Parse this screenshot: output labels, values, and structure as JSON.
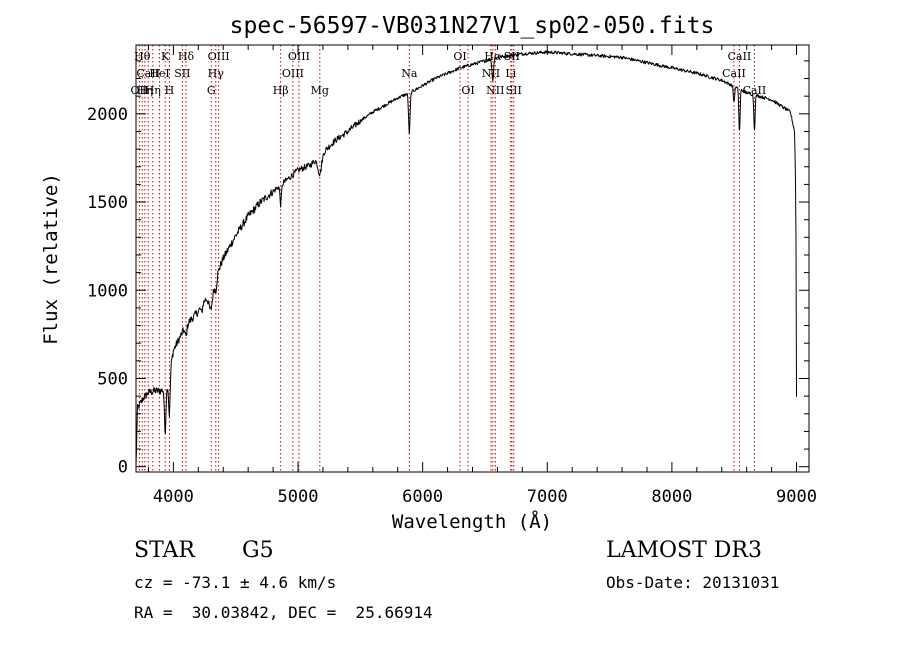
{
  "chart_data": {
    "type": "line",
    "title": "spec-56597-VB031N27V1_sp02-050.fits",
    "xlabel": "Wavelength (Å)",
    "ylabel": "Flux (relative)",
    "xlim": [
      3700,
      9100
    ],
    "ylim": [
      -30,
      2390
    ],
    "xticks": [
      4000,
      5000,
      6000,
      7000,
      8000,
      9000
    ],
    "yticks": [
      0,
      500,
      1000,
      1500,
      2000
    ],
    "xtick_labels": [
      "4000",
      "5000",
      "6000",
      "7000",
      "8000",
      "9000"
    ],
    "ytick_labels": [
      "0",
      "500",
      "1000",
      "1500",
      "2000"
    ],
    "series": [
      {
        "name": "spectrum",
        "continuum": [
          [
            3700,
            0
          ],
          [
            3712,
            330
          ],
          [
            3760,
            390
          ],
          [
            3800,
            420
          ],
          [
            3850,
            430
          ],
          [
            3900,
            430
          ],
          [
            3950,
            450
          ],
          [
            4000,
            660
          ],
          [
            4100,
            800
          ],
          [
            4200,
            880
          ],
          [
            4300,
            1000
          ],
          [
            4400,
            1180
          ],
          [
            4500,
            1310
          ],
          [
            4600,
            1420
          ],
          [
            4700,
            1500
          ],
          [
            4800,
            1560
          ],
          [
            4900,
            1620
          ],
          [
            5000,
            1680
          ],
          [
            5100,
            1710
          ],
          [
            5200,
            1780
          ],
          [
            5300,
            1850
          ],
          [
            5400,
            1900
          ],
          [
            5500,
            1960
          ],
          [
            5600,
            2010
          ],
          [
            5700,
            2050
          ],
          [
            5800,
            2090
          ],
          [
            5900,
            2120
          ],
          [
            6000,
            2160
          ],
          [
            6100,
            2200
          ],
          [
            6200,
            2230
          ],
          [
            6300,
            2260
          ],
          [
            6400,
            2280
          ],
          [
            6500,
            2300
          ],
          [
            6600,
            2320
          ],
          [
            6800,
            2340
          ],
          [
            7000,
            2350
          ],
          [
            7200,
            2340
          ],
          [
            7400,
            2330
          ],
          [
            7600,
            2320
          ],
          [
            7800,
            2290
          ],
          [
            8000,
            2260
          ],
          [
            8200,
            2230
          ],
          [
            8400,
            2190
          ],
          [
            8600,
            2120
          ],
          [
            8800,
            2080
          ],
          [
            8950,
            2010
          ],
          [
            8985,
            1900
          ],
          [
            8995,
            1500
          ],
          [
            9000,
            400
          ]
        ],
        "absorption_lines": [
          [
            3934,
            250,
            6
          ],
          [
            3968,
            230,
            6
          ],
          [
            4101,
            60,
            8
          ],
          [
            4227,
            40,
            6
          ],
          [
            4300,
            110,
            15
          ],
          [
            4340,
            70,
            8
          ],
          [
            4861,
            110,
            6
          ],
          [
            5175,
            100,
            15
          ],
          [
            5893,
            230,
            6
          ],
          [
            6563,
            120,
            6
          ],
          [
            8498,
            90,
            5
          ],
          [
            8542,
            250,
            5
          ],
          [
            8662,
            200,
            5
          ]
        ]
      }
    ],
    "line_markers": [
      {
        "wavelength": 3727,
        "label": "OII",
        "row": 3
      },
      {
        "wavelength": 3750,
        "label": "Hθ",
        "row": 1
      },
      {
        "wavelength": 3771,
        "label": "Hη",
        "row": 3
      },
      {
        "wavelength": 3798,
        "label": "CaII",
        "row": 2
      },
      {
        "wavelength": 3835,
        "label": "Hη",
        "row": 3
      },
      {
        "wavelength": 3889,
        "label": "HeI",
        "row": 2
      },
      {
        "wavelength": 3934,
        "label": "K",
        "row": 1
      },
      {
        "wavelength": 3968,
        "label": "H",
        "row": 3
      },
      {
        "wavelength": 4072,
        "label": "SII",
        "row": 2
      },
      {
        "wavelength": 4101,
        "label": "Hδ",
        "row": 1
      },
      {
        "wavelength": 4304,
        "label": "G",
        "row": 3
      },
      {
        "wavelength": 4340,
        "label": "Hγ",
        "row": 2
      },
      {
        "wavelength": 4363,
        "label": "OIII",
        "row": 1
      },
      {
        "wavelength": 4861,
        "label": "Hβ",
        "row": 3
      },
      {
        "wavelength": 4959,
        "label": "OIII",
        "row": 2
      },
      {
        "wavelength": 5007,
        "label": "OIII",
        "row": 1
      },
      {
        "wavelength": 5175,
        "label": "Mg",
        "row": 3
      },
      {
        "wavelength": 5893,
        "label": "Na",
        "row": 2
      },
      {
        "wavelength": 6300,
        "label": "OI",
        "row": 1
      },
      {
        "wavelength": 6364,
        "label": "OI",
        "row": 3
      },
      {
        "wavelength": 6548,
        "label": "NII",
        "row": 2
      },
      {
        "wavelength": 6563,
        "label": "Hα",
        "row": 1
      },
      {
        "wavelength": 6583,
        "label": "NII",
        "row": 3
      },
      {
        "wavelength": 6707,
        "label": "Li",
        "row": 2
      },
      {
        "wavelength": 6716,
        "label": "SII",
        "row": 1
      },
      {
        "wavelength": 6731,
        "label": "SII",
        "row": 3
      },
      {
        "wavelength": 8498,
        "label": "CaII",
        "row": 2
      },
      {
        "wavelength": 8542,
        "label": "CaII",
        "row": 1
      },
      {
        "wavelength": 8662,
        "label": "CaII",
        "row": 3
      }
    ],
    "colors": {
      "spectrum": "#000000",
      "markers": "#c00000",
      "axes": "#000000"
    }
  },
  "info": {
    "object_class": "STAR",
    "subclass": "G5",
    "survey": "LAMOST DR3",
    "redshift": "cz = -73.1 ± 4.6 km/s",
    "obs_date": "Obs-Date: 20131031",
    "coords": "RA =  30.03842, DEC =  25.66914"
  }
}
